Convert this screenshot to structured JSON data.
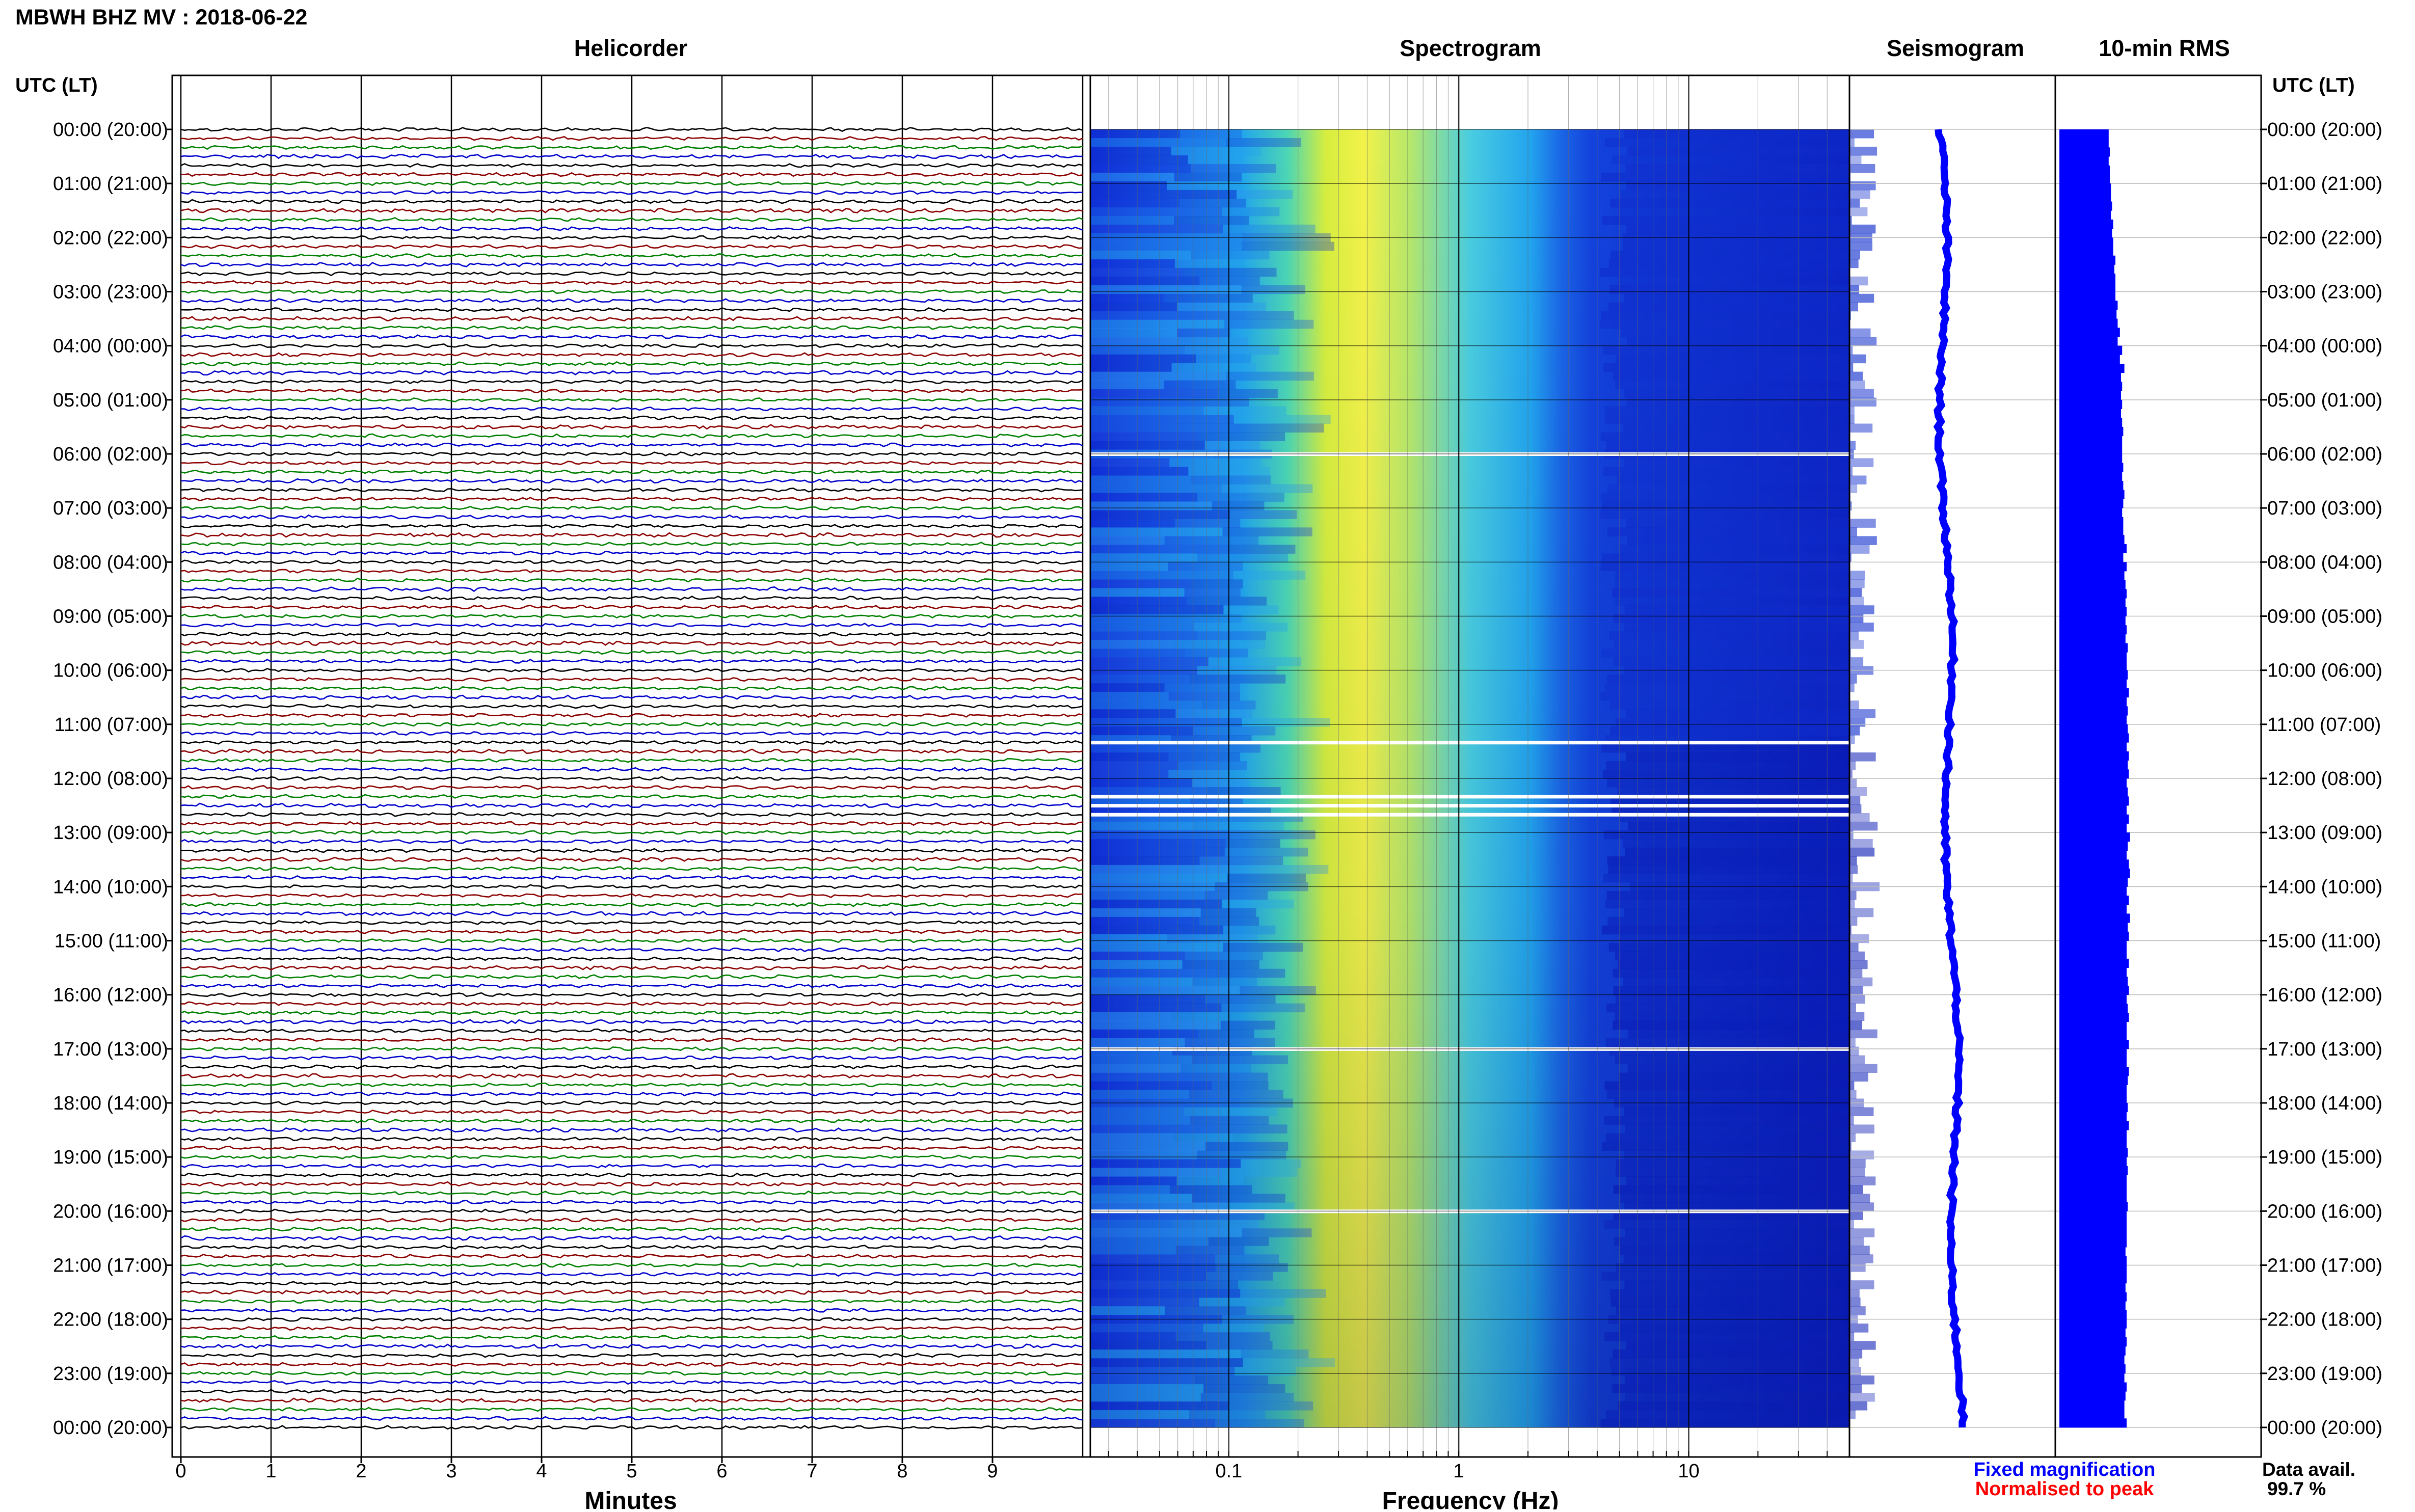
{
  "title": "MBWH BHZ MV : 2018-06-22",
  "panels": {
    "helicorder": "Helicorder",
    "spectrogram": "Spectrogram",
    "seismogram": "Seismogram",
    "rms": "10-min RMS"
  },
  "time_axis": {
    "header": "UTC (LT)",
    "labels": [
      "00:00 (20:00)",
      "01:00 (21:00)",
      "02:00 (22:00)",
      "03:00 (23:00)",
      "04:00 (00:00)",
      "05:00 (01:00)",
      "06:00 (02:00)",
      "07:00 (03:00)",
      "08:00 (04:00)",
      "09:00 (05:00)",
      "10:00 (06:00)",
      "11:00 (07:00)",
      "12:00 (08:00)",
      "13:00 (09:00)",
      "14:00 (10:00)",
      "15:00 (11:00)",
      "16:00 (12:00)",
      "17:00 (13:00)",
      "18:00 (14:00)",
      "19:00 (15:00)",
      "20:00 (16:00)",
      "21:00 (17:00)",
      "22:00 (18:00)",
      "23:00 (19:00)",
      "00:00 (20:00)"
    ]
  },
  "minutes_axis": {
    "label": "Minutes",
    "ticks": [
      "0",
      "1",
      "2",
      "3",
      "4",
      "5",
      "6",
      "7",
      "8",
      "9"
    ]
  },
  "frequency_axis": {
    "label": "Frequency (Hz)",
    "ticks": [
      "0.1",
      "1",
      "10"
    ]
  },
  "legend": {
    "fixed": "Fixed magnification",
    "normalised": "Normalised to peak"
  },
  "data_avail": {
    "label": "Data avail.",
    "value": "99.7 %"
  },
  "colors": {
    "trace_cycle": [
      "#000000",
      "#8b0000",
      "#008000",
      "#0000cc"
    ],
    "fixed": "#0000ff",
    "normalised": "#ff0000",
    "rms_bar": "#0000ff"
  },
  "chart_data": {
    "type": "heatmap",
    "helicorder": {
      "rows_per_hour": 6,
      "row_minutes": 10,
      "trace_color_cycle": [
        "black",
        "darkred",
        "green",
        "blue"
      ]
    },
    "spectrogram": {
      "freq_range_hz": [
        0.025,
        50
      ],
      "scale": "log",
      "peak_band_hz": [
        0.22,
        0.5
      ],
      "gaps_utc": [
        "06:00",
        "11:20",
        "12:20",
        "12:30",
        "12:40",
        "17:00",
        "20:00"
      ]
    },
    "rms_10min": {
      "values": [
        0.44,
        0.44,
        0.45,
        0.44,
        0.45,
        0.45,
        0.46,
        0.46,
        0.47,
        0.46,
        0.48,
        0.47,
        0.48,
        0.48,
        0.5,
        0.49,
        0.5,
        0.5,
        0.5,
        0.52,
        0.51,
        0.52,
        0.54,
        0.52,
        0.56,
        0.54,
        0.58,
        0.55,
        0.56,
        0.55,
        0.56,
        0.55,
        0.56,
        0.57,
        0.56,
        0.56,
        0.56,
        0.57,
        0.56,
        0.57,
        0.58,
        0.57,
        0.56,
        0.57,
        0.57,
        0.58,
        0.6,
        0.57,
        0.6,
        0.58,
        0.59,
        0.6,
        0.59,
        0.6,
        0.59,
        0.6,
        0.59,
        0.61,
        0.6,
        0.6,
        0.61,
        0.6,
        0.62,
        0.6,
        0.61,
        0.6,
        0.61,
        0.62,
        0.6,
        0.62,
        0.61,
        0.62,
        0.6,
        0.61,
        0.62,
        0.6,
        0.62,
        0.6,
        0.63,
        0.61,
        0.6,
        0.62,
        0.63,
        0.61,
        0.6,
        0.62,
        0.6,
        0.63,
        0.61,
        0.62,
        0.6,
        0.6,
        0.62,
        0.6,
        0.61,
        0.62,
        0.6,
        0.61,
        0.62,
        0.6,
        0.6,
        0.62,
        0.6,
        0.6,
        0.62,
        0.61,
        0.6,
        0.6,
        0.61,
        0.6,
        0.62,
        0.6,
        0.6,
        0.61,
        0.6,
        0.61,
        0.6,
        0.6,
        0.6,
        0.61,
        0.6,
        0.6,
        0.6,
        0.6,
        0.59,
        0.6,
        0.6,
        0.6,
        0.59,
        0.6,
        0.59,
        0.6,
        0.6,
        0.59,
        0.6,
        0.59,
        0.58,
        0.59,
        0.58,
        0.6,
        0.59,
        0.58,
        0.58,
        0.6
      ]
    }
  }
}
